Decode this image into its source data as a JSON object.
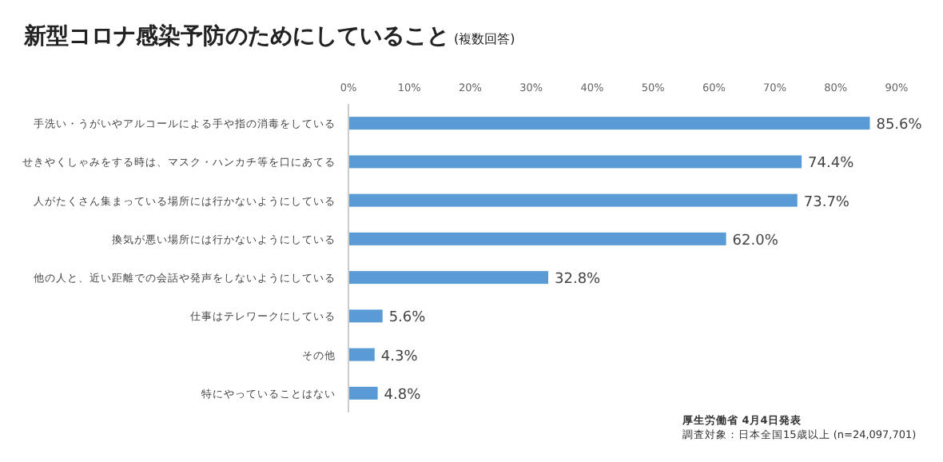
{
  "chart_data": {
    "type": "bar",
    "orientation": "horizontal",
    "title": "新型コロナ感染予防のためにしていること",
    "subtitle": "(複数回答)",
    "categories": [
      "手洗い・うがいやアルコールによる手や指の消毒をしている",
      "せきやくしゃみをする時は、マスク・ハンカチ等を口にあてる",
      "人がたくさん集まっている場所には行かないようにしている",
      "換気が悪い場所には行かないようにしている",
      "他の人と、近い距離での会話や発声をしないようにしている",
      "仕事はテレワークにしている",
      "その他",
      "特にやっていることはない"
    ],
    "values": [
      85.6,
      74.4,
      73.7,
      62.0,
      32.8,
      5.6,
      4.3,
      4.8
    ],
    "value_labels": [
      "85.6%",
      "74.4%",
      "73.7%",
      "62.0%",
      "32.8%",
      "5.6%",
      "4.3%",
      "4.8%"
    ],
    "color": "#5b9bd5",
    "xlim": [
      0,
      90
    ],
    "xticks": [
      {
        "value": 0,
        "label": "0%"
      },
      {
        "value": 10,
        "label": "10%"
      },
      {
        "value": 20,
        "label": "20%"
      },
      {
        "value": 30,
        "label": "30%"
      },
      {
        "value": 40,
        "label": "40%"
      },
      {
        "value": 50,
        "label": "50%"
      },
      {
        "value": 60,
        "label": "60%"
      },
      {
        "value": 70,
        "label": "70%"
      },
      {
        "value": 80,
        "label": "80%"
      },
      {
        "value": 90,
        "label": "90%"
      }
    ],
    "grid": false,
    "annotations": [
      "厚生労働省 4月4日発表",
      "調査対象：日本全国15歳以上 (n=24,097,701)"
    ]
  }
}
